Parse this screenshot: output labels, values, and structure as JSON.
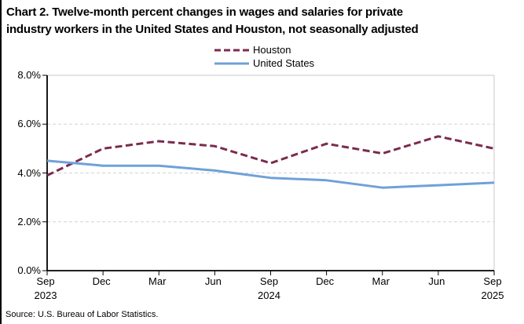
{
  "title": {
    "line1": "Chart 2. Twelve-month percent changes in wages and salaries for private",
    "line2": "industry workers in the United States and Houston, not seasonally adjusted"
  },
  "legend": {
    "houston": "Houston",
    "united_states": "United States"
  },
  "source": "Source: U.S. Bureau of Labor Statistics.",
  "colors": {
    "houston": "#7C2B4E",
    "united_states": "#70A0DA",
    "gridline": "#D4D4D4",
    "frame": "#C8C8C8",
    "axis": "#000000"
  },
  "chart_data": {
    "type": "line",
    "title": "Chart 2. Twelve-month percent changes in wages and salaries for private industry workers in the United States and Houston, not seasonally adjusted",
    "x": [
      "Sep 2023",
      "Dec 2023",
      "Mar 2024",
      "Jun 2024",
      "Sep 2024",
      "Dec 2024",
      "Mar 2025",
      "Jun 2025",
      "Sep 2025"
    ],
    "x_ticks": [
      {
        "month": "Sep",
        "year": "2023"
      },
      {
        "month": "Dec",
        "year": ""
      },
      {
        "month": "Mar",
        "year": ""
      },
      {
        "month": "Jun",
        "year": ""
      },
      {
        "month": "Sep",
        "year": "2024"
      },
      {
        "month": "Dec",
        "year": ""
      },
      {
        "month": "Mar",
        "year": ""
      },
      {
        "month": "Jun",
        "year": ""
      },
      {
        "month": "Sep",
        "year": "2025"
      }
    ],
    "y_ticks": [
      "0.0%",
      "2.0%",
      "4.0%",
      "6.0%",
      "8.0%"
    ],
    "y_tick_values": [
      0,
      2,
      4,
      6,
      8
    ],
    "ylim": [
      0,
      8
    ],
    "grid": "horizontal-dashed",
    "legend_position": "top-center",
    "series": [
      {
        "name": "Houston",
        "style": "dashed",
        "color": "#7C2B4E",
        "values": [
          3.9,
          5.0,
          5.3,
          5.1,
          4.4,
          5.2,
          4.8,
          5.5,
          5.0
        ]
      },
      {
        "name": "United States",
        "style": "solid",
        "color": "#70A0DA",
        "values": [
          4.5,
          4.3,
          4.3,
          4.1,
          3.8,
          3.7,
          3.4,
          3.5,
          3.6
        ]
      }
    ],
    "ylabel": "",
    "xlabel": ""
  }
}
